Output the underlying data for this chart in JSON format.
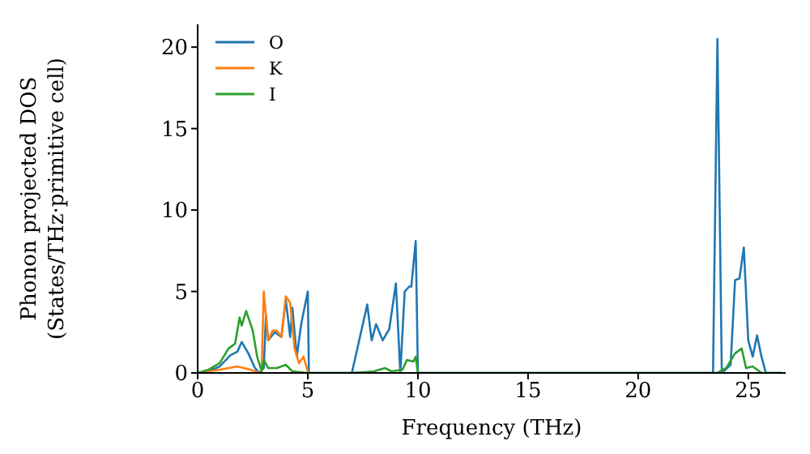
{
  "chart_data": {
    "type": "line",
    "xlabel": "Frequency (THz)",
    "ylabel": "Phonon projected DOS\n(States/THz·primitive cell)",
    "xlim": [
      0,
      26.7
    ],
    "ylim": [
      0,
      21.4
    ],
    "xticks": [
      0,
      5,
      10,
      15,
      20,
      25
    ],
    "yticks": [
      0,
      5,
      10,
      15,
      20
    ],
    "legend": "top left",
    "grid": false,
    "marker": "none",
    "line_style": "solid",
    "series": [
      {
        "name": "O",
        "color": "#1f77b4",
        "x": [
          0,
          0.5,
          1,
          1.5,
          1.8,
          2.0,
          2.3,
          2.6,
          2.8,
          3.0,
          3.1,
          3.2,
          3.5,
          3.8,
          4.0,
          4.2,
          4.3,
          4.5,
          4.7,
          5.0,
          5.05,
          7.0,
          7.7,
          7.9,
          8.1,
          8.4,
          8.7,
          9.0,
          9.2,
          9.4,
          9.6,
          9.7,
          9.9,
          10.0,
          23.4,
          23.6,
          23.8,
          24.2,
          24.4,
          24.6,
          24.8,
          25.0,
          25.2,
          25.4,
          25.6,
          25.8,
          26.5
        ],
        "values": [
          0,
          0.1,
          0.4,
          1.1,
          1.3,
          1.9,
          1.2,
          0.3,
          0,
          0.3,
          3.5,
          2.0,
          2.5,
          2.2,
          4.5,
          2.2,
          4.0,
          1.0,
          3.0,
          5.0,
          0,
          0,
          4.2,
          2.0,
          3.0,
          2.0,
          2.7,
          5.5,
          0,
          5.0,
          5.3,
          5.3,
          8.1,
          0,
          0,
          20.5,
          0,
          0.5,
          5.7,
          5.8,
          7.7,
          2.0,
          1.0,
          2.3,
          1.0,
          0,
          0
        ]
      },
      {
        "name": "K",
        "color": "#ff7f0e",
        "x": [
          0,
          1,
          1.8,
          2.4,
          2.8,
          2.9,
          3.0,
          3.2,
          3.4,
          3.6,
          3.8,
          4.0,
          4.2,
          4.4,
          4.6,
          4.8,
          5.0,
          5.05
        ],
        "values": [
          0,
          0.2,
          0.4,
          0.2,
          0,
          0,
          5.0,
          2.0,
          2.6,
          2.6,
          2.2,
          4.7,
          4.3,
          1.5,
          0.6,
          1.0,
          0.1,
          0
        ]
      },
      {
        "name": "I",
        "color": "#2ca02c",
        "x": [
          0,
          0.5,
          1,
          1.4,
          1.7,
          1.9,
          2.0,
          2.2,
          2.5,
          2.7,
          2.9,
          3.0,
          3.2,
          3.6,
          4.0,
          4.3,
          5,
          7,
          8,
          8.5,
          8.8,
          9.3,
          9.5,
          9.8,
          9.9,
          10.0,
          23.6,
          24,
          24.4,
          24.7,
          24.9,
          25.2,
          25.4,
          25.6,
          26.5
        ],
        "values": [
          0,
          0.2,
          0.6,
          1.5,
          1.8,
          3.4,
          2.9,
          3.8,
          2.6,
          1.0,
          0.1,
          0.8,
          0.3,
          0.3,
          0.5,
          0.1,
          0,
          0,
          0.1,
          0.3,
          0.1,
          0.2,
          0.8,
          0.7,
          1.0,
          0,
          0,
          0.3,
          1.2,
          1.5,
          0.3,
          0.4,
          0.2,
          0,
          0
        ]
      }
    ]
  }
}
